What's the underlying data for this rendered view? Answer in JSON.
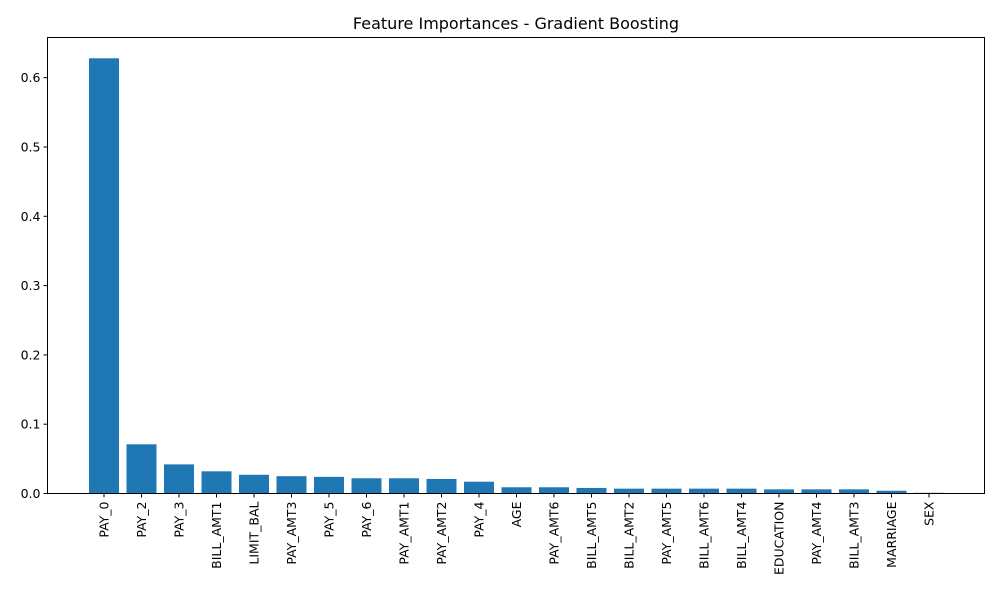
{
  "chart_data": {
    "type": "bar",
    "title": "Feature Importances - Gradient Boosting",
    "xlabel": "",
    "ylabel": "",
    "categories": [
      "PAY_0",
      "PAY_2",
      "PAY_3",
      "BILL_AMT1",
      "LIMIT_BAL",
      "PAY_AMT3",
      "PAY_5",
      "PAY_6",
      "PAY_AMT1",
      "PAY_AMT2",
      "PAY_4",
      "AGE",
      "PAY_AMT6",
      "BILL_AMT5",
      "BILL_AMT2",
      "PAY_AMT5",
      "BILL_AMT6",
      "BILL_AMT4",
      "EDUCATION",
      "PAY_AMT4",
      "BILL_AMT3",
      "MARRIAGE",
      "SEX"
    ],
    "values": [
      0.628,
      0.071,
      0.042,
      0.032,
      0.027,
      0.025,
      0.024,
      0.022,
      0.022,
      0.021,
      0.017,
      0.009,
      0.009,
      0.008,
      0.007,
      0.007,
      0.007,
      0.007,
      0.006,
      0.006,
      0.006,
      0.004,
      0.001
    ],
    "ylim": [
      0,
      0.658
    ],
    "yticks": [
      "0.0",
      "0.1",
      "0.2",
      "0.3",
      "0.4",
      "0.5",
      "0.6"
    ],
    "grid": false,
    "bar_color": "#1f77b4"
  }
}
